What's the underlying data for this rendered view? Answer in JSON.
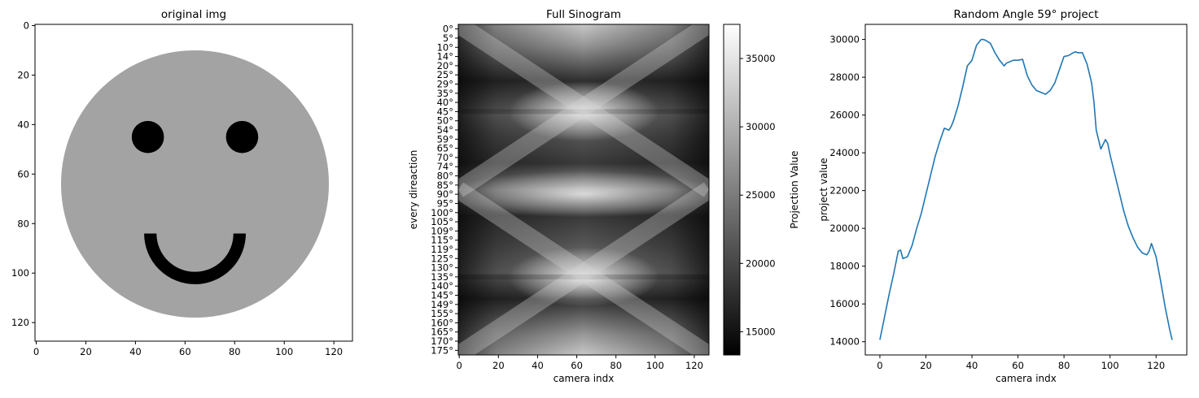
{
  "chart_data": [
    {
      "type": "image",
      "title": "original img",
      "xlabel": "",
      "ylabel": "",
      "xlim": [
        -0.5,
        127.5
      ],
      "ylim": [
        127.5,
        -0.5
      ],
      "x_ticks": [
        "0",
        "20",
        "40",
        "60",
        "80",
        "100",
        "120"
      ],
      "y_ticks": [
        "0",
        "20",
        "40",
        "60",
        "80",
        "100",
        "120"
      ],
      "image_size": [
        128,
        128
      ],
      "face": {
        "center": [
          64,
          64
        ],
        "radius": 54,
        "value_color": "#a3a3a3"
      },
      "eyes": [
        {
          "center": [
            45,
            45
          ],
          "radius": 6.5
        },
        {
          "center": [
            83,
            45
          ],
          "radius": 6.5
        }
      ],
      "mouth": {
        "center": [
          64,
          84
        ],
        "radius": 18,
        "thickness": 5
      },
      "background_color": "#ffffff",
      "feature_color": "#000000"
    },
    {
      "type": "heatmap",
      "title": "Full Sinogram",
      "xlabel": "camera indx",
      "ylabel": "every direaction",
      "x_ticks": [
        "0",
        "20",
        "40",
        "60",
        "80",
        "100",
        "120"
      ],
      "xlim": [
        -0.5,
        127.5
      ],
      "y_tick_labels": [
        "0°",
        "5°",
        "10°",
        "14°",
        "20°",
        "25°",
        "29°",
        "35°",
        "40°",
        "45°",
        "50°",
        "54°",
        "59°",
        "65°",
        "70°",
        "74°",
        "80°",
        "85°",
        "90°",
        "95°",
        "100°",
        "105°",
        "109°",
        "115°",
        "119°",
        "125°",
        "130°",
        "135°",
        "140°",
        "145°",
        "149°",
        "155°",
        "160°",
        "165°",
        "170°",
        "175°"
      ],
      "colormap": "gray",
      "colorbar": {
        "label": "Projection Value",
        "ticks": [
          "15000",
          "20000",
          "25000",
          "30000",
          "35000"
        ],
        "vmin": 13300,
        "vmax": 37500
      }
    },
    {
      "type": "line",
      "title": "Random Angle 59° project",
      "xlabel": "camera indx",
      "ylabel": "project value",
      "xlim": [
        -6.35,
        133.35
      ],
      "ylim": [
        13300,
        30800
      ],
      "x_ticks": [
        "0",
        "20",
        "40",
        "60",
        "80",
        "100",
        "120"
      ],
      "y_ticks": [
        "14000",
        "16000",
        "18000",
        "20000",
        "22000",
        "24000",
        "26000",
        "28000",
        "30000"
      ],
      "line_color": "#1f77b4",
      "series": [
        {
          "x": [
            0,
            2,
            4,
            6,
            8,
            9,
            10,
            12,
            14,
            16,
            18,
            20,
            22,
            24,
            26,
            28,
            30,
            31,
            32,
            34,
            36,
            38,
            40,
            42,
            44,
            45,
            46,
            48,
            50,
            52,
            54,
            55,
            56,
            58,
            60,
            62,
            64,
            66,
            68,
            70,
            72,
            74,
            76,
            78,
            80,
            82,
            84,
            85,
            86,
            88,
            90,
            92,
            93,
            94,
            96,
            98,
            99,
            100,
            102,
            104,
            106,
            108,
            110,
            112,
            114,
            116,
            117,
            118,
            120,
            122,
            124,
            126,
            127
          ],
          "y": [
            14100,
            15300,
            16500,
            17600,
            18800,
            18850,
            18400,
            18500,
            19100,
            20000,
            20800,
            21800,
            22800,
            23800,
            24600,
            25300,
            25200,
            25400,
            25700,
            26500,
            27500,
            28600,
            28900,
            29700,
            30000,
            30000,
            29950,
            29800,
            29300,
            28900,
            28600,
            28750,
            28800,
            28900,
            28900,
            28950,
            28100,
            27600,
            27300,
            27200,
            27100,
            27300,
            27700,
            28400,
            29100,
            29150,
            29300,
            29350,
            29300,
            29300,
            28700,
            27700,
            26700,
            25200,
            24200,
            24700,
            24500,
            23900,
            22900,
            21900,
            20900,
            20100,
            19500,
            19000,
            18700,
            18600,
            18800,
            19200,
            18500,
            17200,
            15800,
            14600,
            14100
          ]
        }
      ]
    }
  ]
}
